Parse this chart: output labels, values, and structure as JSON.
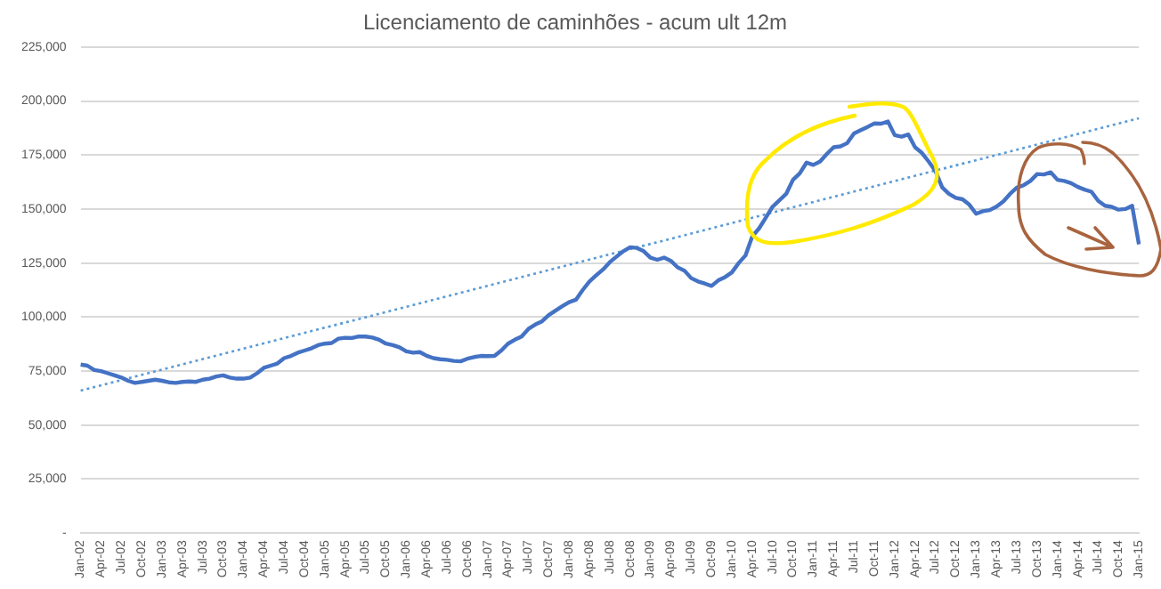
{
  "chart_data": {
    "type": "line",
    "title": "Licenciamento de caminhões - acum ult 12m",
    "categories": [
      "Jan-02",
      null,
      null,
      "Apr-02",
      null,
      null,
      "Jul-02",
      null,
      null,
      "Oct-02",
      null,
      null,
      "Jan-03",
      null,
      null,
      "Apr-03",
      null,
      null,
      "Jul-03",
      null,
      null,
      "Oct-03",
      null,
      null,
      "Jan-04",
      null,
      null,
      "Apr-04",
      null,
      null,
      "Jul-04",
      null,
      null,
      "Oct-04",
      null,
      null,
      "Jan-05",
      null,
      null,
      "Apr-05",
      null,
      null,
      "Jul-05",
      null,
      null,
      "Oct-05",
      null,
      null,
      "Jan-06",
      null,
      null,
      "Apr-06",
      null,
      null,
      "Jul-06",
      null,
      null,
      "Oct-06",
      null,
      null,
      "Jan-07",
      null,
      null,
      "Apr-07",
      null,
      null,
      "Jul-07",
      null,
      null,
      "Oct-07",
      null,
      null,
      "Jan-08",
      null,
      null,
      "Apr-08",
      null,
      null,
      "Jul-08",
      null,
      null,
      "Oct-08",
      null,
      null,
      "Jan-09",
      null,
      null,
      "Apr-09",
      null,
      null,
      "Jul-09",
      null,
      null,
      "Oct-09",
      null,
      null,
      "Jan-10",
      null,
      null,
      "Apr-10",
      null,
      null,
      "Jul-10",
      null,
      null,
      "Oct-10",
      null,
      null,
      "Jan-11",
      null,
      null,
      "Apr-11",
      null,
      null,
      "Jul-11",
      null,
      null,
      "Oct-11",
      null,
      null,
      "Jan-12",
      null,
      null,
      "Apr-12",
      null,
      null,
      "Jul-12",
      null,
      null,
      "Oct-12",
      null,
      null,
      "Jan-13",
      null,
      null,
      "Apr-13",
      null,
      null,
      "Jul-13",
      null,
      null,
      "Oct-13",
      null,
      null,
      "Jan-14",
      null,
      null,
      "Apr-14",
      null,
      null,
      "Jul-14",
      null,
      null,
      "Oct-14",
      null,
      null,
      "Jan-15"
    ],
    "series": [
      {
        "color": "#4472c4",
        "line_style": "solid",
        "values": [
          78000,
          77500,
          75500,
          75000,
          74000,
          73000,
          72000,
          70500,
          69500,
          70000,
          70500,
          71000,
          70500,
          69800,
          69500,
          70000,
          70200,
          70000,
          71000,
          71500,
          72500,
          73000,
          72000,
          71500,
          71500,
          72000,
          74000,
          76500,
          77500,
          78500,
          81000,
          82000,
          83500,
          84500,
          85500,
          87000,
          87700,
          88000,
          90000,
          90400,
          90300,
          91000,
          91000,
          90500,
          89500,
          87700,
          87000,
          86000,
          84100,
          83500,
          83800,
          82100,
          81000,
          80500,
          80200,
          79700,
          79500,
          80700,
          81500,
          82000,
          81900,
          82000,
          84500,
          87700,
          89500,
          91000,
          94500,
          96500,
          98000,
          100900,
          103000,
          105000,
          106900,
          108000,
          112500,
          116500,
          119300,
          122000,
          125400,
          128000,
          130500,
          132300,
          132000,
          130500,
          127500,
          126500,
          127500,
          126000,
          123000,
          121500,
          118000,
          116500,
          115500,
          114400,
          117000,
          118500,
          120700,
          125000,
          128500,
          137300,
          141000,
          146000,
          151100,
          154000,
          157000,
          163500,
          166500,
          171500,
          170400,
          172000,
          175500,
          178600,
          179000,
          180500,
          185000,
          186500,
          188000,
          189600,
          189500,
          190500,
          184200,
          183500,
          184500,
          178600,
          176000,
          172000,
          167600,
          160000,
          157000,
          155200,
          154500,
          152000,
          147800,
          149000,
          149500,
          151100,
          153500,
          157000,
          159900,
          161000,
          163000,
          166200,
          166000,
          167000,
          163500,
          163000,
          162000,
          160200,
          159000,
          158000,
          153800,
          151500,
          151000,
          149700,
          150000,
          151500,
          133700
        ]
      },
      {
        "color": "#5b9bd5",
        "line_style": "dotted",
        "x": [
          "Jan-02",
          "Jan-15"
        ],
        "values": [
          66000,
          192000
        ]
      }
    ],
    "ylim": [
      0,
      225000
    ],
    "yticks": [
      {
        "value": 0,
        "label": "-"
      },
      {
        "value": 25000,
        "label": "25,000"
      },
      {
        "value": 50000,
        "label": "50,000"
      },
      {
        "value": 75000,
        "label": "75,000"
      },
      {
        "value": 100000,
        "label": "100,000"
      },
      {
        "value": 125000,
        "label": "125,000"
      },
      {
        "value": 150000,
        "label": "150,000"
      },
      {
        "value": 175000,
        "label": "175,000"
      },
      {
        "value": 200000,
        "label": "200,000"
      },
      {
        "value": 225000,
        "label": "225,000"
      }
    ],
    "grid": "y",
    "legend": false,
    "marker": "none"
  }
}
